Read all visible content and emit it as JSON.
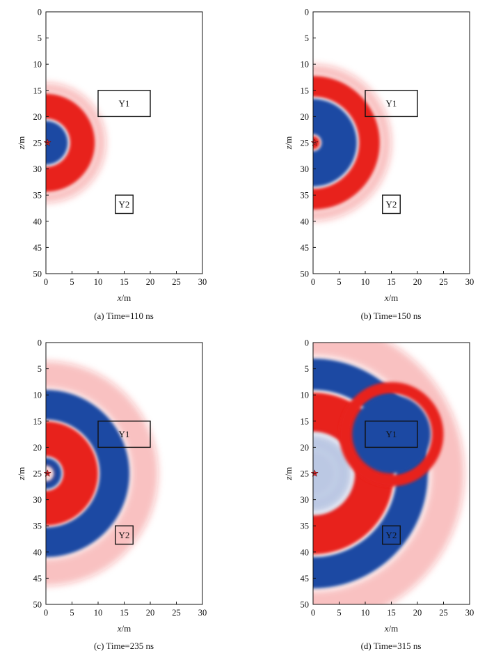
{
  "figure": {
    "panels": [
      {
        "caption": "(a) Time=110 ns",
        "xlabel_var": "x",
        "xlabel_unit": "/m",
        "ylabel_var": "z",
        "ylabel_unit": "/m",
        "box_labels": [
          "Y1",
          "Y2"
        ]
      },
      {
        "caption": "(b) Time=150 ns",
        "xlabel_var": "x",
        "xlabel_unit": "/m",
        "ylabel_var": "z",
        "ylabel_unit": "/m",
        "box_labels": [
          "Y1",
          "Y2"
        ]
      },
      {
        "caption": "(c) Time=235 ns",
        "xlabel_var": "x",
        "xlabel_unit": "/m",
        "ylabel_var": "z",
        "ylabel_unit": "/m",
        "box_labels": [
          "Y1",
          "Y2"
        ]
      },
      {
        "caption": "(d) Time=315 ns",
        "xlabel_var": "x",
        "xlabel_unit": "/m",
        "ylabel_var": "z",
        "ylabel_unit": "/m",
        "box_labels": [
          "Y1",
          "Y2"
        ]
      }
    ]
  },
  "colors": {
    "positive": "#e8201f",
    "negative": "#1f4aa3",
    "background": "#ffffff",
    "source": "#d6262b"
  },
  "chart_data": [
    {
      "type": "heatmap",
      "time_ns": 110,
      "xlim": [
        0,
        30
      ],
      "ylim": [
        50,
        0
      ],
      "xticks": [
        0,
        5,
        10,
        15,
        20,
        25,
        30
      ],
      "yticks": [
        0,
        5,
        10,
        15,
        20,
        25,
        30,
        35,
        40,
        45,
        50
      ],
      "source": {
        "x": 0.3,
        "z": 25
      },
      "objects": [
        {
          "label": "Y1",
          "x": [
            10,
            20
          ],
          "z": [
            15,
            20
          ]
        },
        {
          "label": "Y2",
          "x": [
            13.3,
            16.7
          ],
          "z": [
            35,
            38.5
          ]
        }
      ],
      "wavefronts": [
        {
          "center": [
            0,
            25
          ],
          "r_inner": 0,
          "r_outer": 4.2,
          "polarity": "negative"
        },
        {
          "center": [
            0,
            25
          ],
          "r_inner": 4.6,
          "r_outer": 9.4,
          "polarity": "positive"
        },
        {
          "center": [
            0,
            25
          ],
          "r_inner": 9.4,
          "r_outer": 11.5,
          "polarity": "weak-positive"
        }
      ]
    },
    {
      "type": "heatmap",
      "time_ns": 150,
      "xlim": [
        0,
        30
      ],
      "ylim": [
        50,
        0
      ],
      "xticks": [
        0,
        5,
        10,
        15,
        20,
        25,
        30
      ],
      "yticks": [
        0,
        5,
        10,
        15,
        20,
        25,
        30,
        35,
        40,
        45,
        50
      ],
      "source": {
        "x": 0.3,
        "z": 25
      },
      "objects": [
        {
          "label": "Y1",
          "x": [
            10,
            20
          ],
          "z": [
            15,
            20
          ]
        },
        {
          "label": "Y2",
          "x": [
            13.3,
            16.7
          ],
          "z": [
            35,
            38.5
          ]
        }
      ],
      "wavefronts": [
        {
          "center": [
            0,
            25
          ],
          "r_inner": 0,
          "r_outer": 1.3,
          "polarity": "positive"
        },
        {
          "center": [
            0,
            25
          ],
          "r_inner": 1.6,
          "r_outer": 8.4,
          "polarity": "negative"
        },
        {
          "center": [
            0,
            25
          ],
          "r_inner": 8.8,
          "r_outer": 12.8,
          "polarity": "positive"
        },
        {
          "center": [
            0,
            25
          ],
          "r_inner": 12.8,
          "r_outer": 15,
          "polarity": "weak-positive"
        }
      ]
    },
    {
      "type": "heatmap",
      "time_ns": 235,
      "xlim": [
        0,
        30
      ],
      "ylim": [
        50,
        0
      ],
      "xticks": [
        0,
        5,
        10,
        15,
        20,
        25,
        30
      ],
      "yticks": [
        0,
        5,
        10,
        15,
        20,
        25,
        30,
        35,
        40,
        45,
        50
      ],
      "source": {
        "x": 0.3,
        "z": 25
      },
      "objects": [
        {
          "label": "Y1",
          "x": [
            10,
            20
          ],
          "z": [
            15,
            20
          ]
        },
        {
          "label": "Y2",
          "x": [
            13.3,
            16.7
          ],
          "z": [
            35,
            38.5
          ]
        }
      ],
      "wavefronts": [
        {
          "center": [
            0,
            25
          ],
          "r_inner": 0,
          "r_outer": 1.5,
          "polarity": "weak-positive"
        },
        {
          "center": [
            0,
            25
          ],
          "r_inner": 1.5,
          "r_outer": 3.0,
          "polarity": "negative"
        },
        {
          "center": [
            0,
            25
          ],
          "r_inner": 3.3,
          "r_outer": 10,
          "polarity": "positive"
        },
        {
          "center": [
            0,
            25
          ],
          "r_inner": 10.3,
          "r_outer": 16,
          "polarity": "negative"
        },
        {
          "center": [
            0,
            25
          ],
          "r_inner": 16.3,
          "r_outer": 21.5,
          "polarity": "weak-positive"
        }
      ]
    },
    {
      "type": "heatmap",
      "time_ns": 315,
      "xlim": [
        0,
        30
      ],
      "ylim": [
        50,
        0
      ],
      "xticks": [
        0,
        5,
        10,
        15,
        20,
        25,
        30
      ],
      "yticks": [
        0,
        5,
        10,
        15,
        20,
        25,
        30,
        35,
        40,
        45,
        50
      ],
      "source": {
        "x": 0.3,
        "z": 25
      },
      "objects": [
        {
          "label": "Y1",
          "x": [
            10,
            20
          ],
          "z": [
            15,
            20
          ]
        },
        {
          "label": "Y2",
          "x": [
            13.3,
            16.7
          ],
          "z": [
            35,
            38.5
          ]
        }
      ],
      "wavefronts": [
        {
          "center": [
            0,
            25
          ],
          "r_inner": 0,
          "r_outer": 4.5,
          "polarity": "weak-negative"
        },
        {
          "center": [
            0,
            25
          ],
          "r_inner": 4.5,
          "r_outer": 7.5,
          "polarity": "weak-negative"
        },
        {
          "center": [
            0,
            25
          ],
          "r_inner": 8,
          "r_outer": 15.5,
          "polarity": "positive"
        },
        {
          "center": [
            0,
            25
          ],
          "r_inner": 16,
          "r_outer": 22,
          "polarity": "negative"
        },
        {
          "center": [
            0,
            25
          ],
          "r_inner": 22.5,
          "r_outer": 29,
          "polarity": "weak-positive"
        }
      ],
      "scattered": [
        {
          "center": [
            15,
            17.5
          ],
          "r_inner": 0,
          "r_outer": 7.5,
          "polarity": "negative"
        },
        {
          "center": [
            15,
            17.5
          ],
          "r_inner": 7.8,
          "r_outer": 10,
          "polarity": "positive"
        }
      ]
    }
  ]
}
